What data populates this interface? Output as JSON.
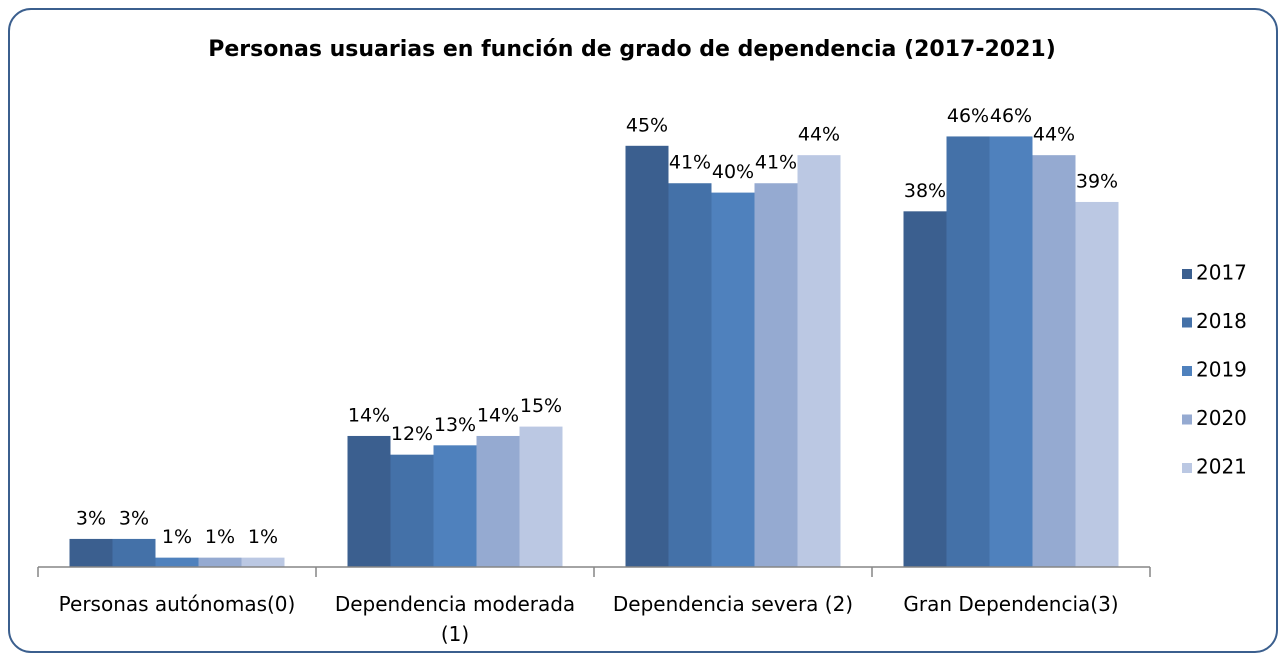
{
  "chart_data": {
    "type": "bar",
    "title": "Personas usuarias en función de grado de dependencia (2017-2021)",
    "categories": [
      "Personas autónomas(0)",
      "Dependencia moderada (1)",
      "Dependencia severa (2)",
      "Gran Dependencia(3)"
    ],
    "series": [
      {
        "name": "2017",
        "color": "#3b5f8f",
        "values": [
          3,
          14,
          45,
          38
        ],
        "value_labels": [
          "3%",
          "14%",
          "45%",
          "38%"
        ]
      },
      {
        "name": "2018",
        "color": "#4471a8",
        "values": [
          3,
          12,
          41,
          46
        ],
        "value_labels": [
          "3%",
          "12%",
          "41%",
          "46%"
        ]
      },
      {
        "name": "2019",
        "color": "#4f81bd",
        "values": [
          1,
          13,
          40,
          46
        ],
        "value_labels": [
          "1%",
          "13%",
          "40%",
          "46%"
        ]
      },
      {
        "name": "2020",
        "color": "#95aad1",
        "values": [
          1,
          14,
          41,
          44
        ],
        "value_labels": [
          "1%",
          "14%",
          "41%",
          "44%"
        ]
      },
      {
        "name": "2021",
        "color": "#bbc8e3",
        "values": [
          1,
          15,
          44,
          39
        ],
        "value_labels": [
          "1%",
          "15%",
          "44%",
          "39%"
        ]
      }
    ],
    "ylim": [
      0,
      50
    ],
    "legend": "right"
  }
}
